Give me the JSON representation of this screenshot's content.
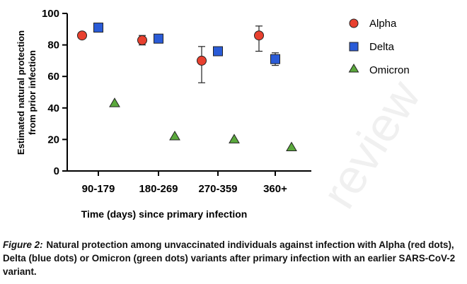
{
  "chart_data": {
    "type": "scatter",
    "categories": [
      "90-179",
      "180-269",
      "270-359",
      "360+"
    ],
    "series": [
      {
        "name": "Alpha",
        "color": "#e8402f",
        "marker": "circle",
        "values": [
          86,
          83,
          70,
          86
        ],
        "error_low": [
          null,
          80,
          56,
          76
        ],
        "error_high": [
          null,
          86,
          79,
          92
        ]
      },
      {
        "name": "Delta",
        "color": "#2a5bd7",
        "marker": "square",
        "values": [
          91,
          84,
          76,
          71
        ],
        "error_low": [
          null,
          null,
          null,
          67
        ],
        "error_high": [
          null,
          null,
          null,
          75
        ]
      },
      {
        "name": "Omicron",
        "color": "#5aa83c",
        "marker": "triangle",
        "values": [
          43,
          22,
          20,
          15
        ],
        "error_low": [
          null,
          null,
          null,
          null
        ],
        "error_high": [
          null,
          null,
          null,
          null
        ]
      }
    ],
    "yticks": [
      0,
      20,
      40,
      60,
      80,
      100
    ],
    "ylim": [
      0,
      100
    ],
    "ylabel_line1": "Estimated natural protection",
    "ylabel_line2": "from prior infection",
    "xlabel": "Time (days) since primary infection",
    "legend_position": "top-right"
  },
  "watermark": "review",
  "caption": {
    "label": "Figure 2:",
    "text": "Natural protection among unvaccinated individuals against infection with Alpha (red dots), Delta (blue dots) or Omicron (green dots) variants after primary infection with an earlier SARS-CoV-2 variant."
  }
}
